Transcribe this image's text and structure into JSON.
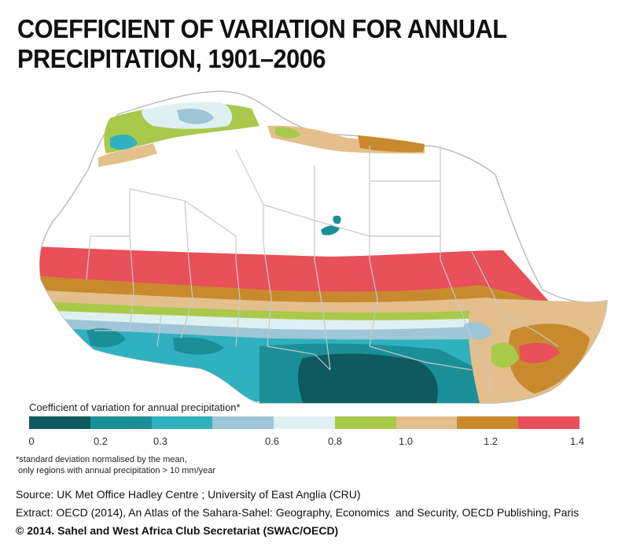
{
  "title": "COEFFICIENT OF VARIATION FOR ANNUAL PRECIPITATION, 1901–2006",
  "legend": {
    "title": "Coefficient of variation for annual precipitation*",
    "classes": [
      {
        "color": "#0e5a5e"
      },
      {
        "color": "#1b8f97"
      },
      {
        "color": "#2fb1c0"
      },
      {
        "color": "#9ec6d6"
      },
      {
        "color": "#dff0f2"
      },
      {
        "color": "#a9c94a"
      },
      {
        "color": "#e3bf8d"
      },
      {
        "color": "#c98a2e"
      },
      {
        "color": "#e8505a"
      }
    ],
    "ticks": [
      "0",
      "0.2",
      "0.3",
      "0.6",
      "0.8",
      "1.0",
      "1.2",
      "1.4"
    ]
  },
  "notes": {
    "line1": "*standard deviation normalised by the mean,",
    "line2": " only regions with annual precipitation > 10 mm/year"
  },
  "credits": {
    "source": "Source: UK Met Office Hadley Centre ; University of East Anglia (CRU)",
    "extract": "Extract: OECD (2014), An Atlas of the Sahara-Sahel: Geography, Economics  and Security, OECD Publishing, Paris",
    "copyright": "© 2014. Sahel and West Africa Club Secretariat (SWAC/OECD)"
  },
  "map": {
    "land_color": "#ffffff",
    "border_color": "#c8c8c8"
  }
}
